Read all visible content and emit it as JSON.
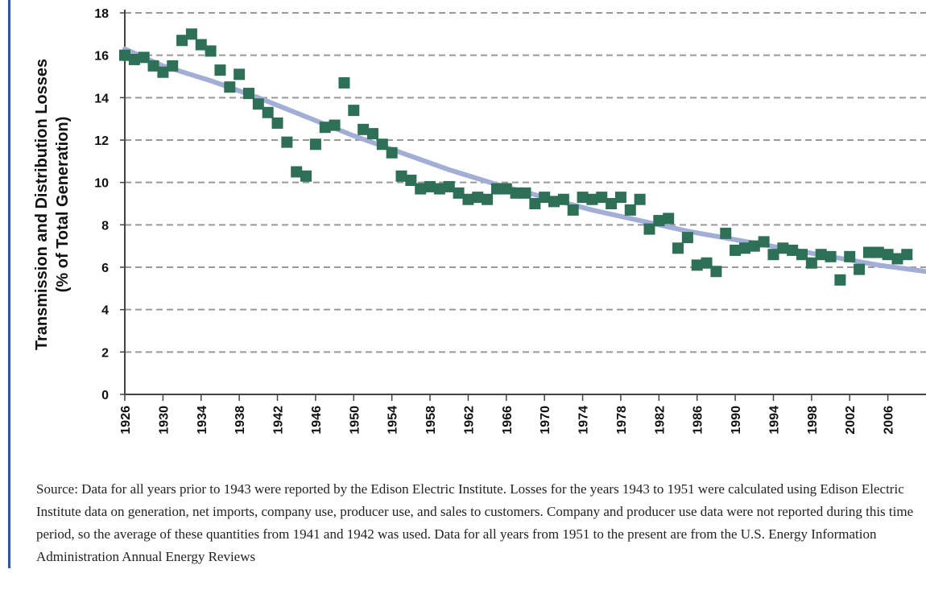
{
  "chart_data": {
    "type": "scatter",
    "ylabel": [
      "Transmission and Distribution Losses",
      "(% of Total Generation)"
    ],
    "source": "Source: Data for all years prior to 1943 were reported by the Edison Electric Institute. Losses for the years 1943 to 1951 were calculated using Edison Electric Institute data on generation, net imports, company use, producer use, and sales to customers. Company and producer use data were not reported during this time period, so the average of these quantities from 1941 and 1942 was used. Data for all years from 1951 to the present are from the U.S. Energy Information Administration Annual Energy Reviews",
    "x": [
      1926,
      1927,
      1928,
      1929,
      1930,
      1931,
      1932,
      1933,
      1934,
      1935,
      1936,
      1937,
      1938,
      1939,
      1940,
      1941,
      1942,
      1943,
      1944,
      1945,
      1946,
      1947,
      1948,
      1949,
      1950,
      1951,
      1952,
      1953,
      1954,
      1955,
      1956,
      1957,
      1958,
      1959,
      1960,
      1961,
      1962,
      1963,
      1964,
      1965,
      1966,
      1967,
      1968,
      1969,
      1970,
      1971,
      1972,
      1973,
      1974,
      1975,
      1976,
      1977,
      1978,
      1979,
      1980,
      1981,
      1982,
      1983,
      1984,
      1985,
      1986,
      1987,
      1988,
      1989,
      1990,
      1991,
      1992,
      1993,
      1994,
      1995,
      1996,
      1997,
      1998,
      1999,
      2000,
      2001,
      2002,
      2003,
      2004,
      2005,
      2006,
      2007,
      2008
    ],
    "series": [
      {
        "color": "#2e7056",
        "values": [
          16.0,
          15.8,
          15.9,
          15.5,
          15.2,
          15.5,
          16.7,
          17.0,
          16.5,
          16.2,
          15.3,
          14.5,
          15.1,
          14.2,
          13.7,
          13.3,
          12.8,
          11.9,
          10.5,
          10.3,
          11.8,
          12.6,
          12.7,
          14.7,
          13.4,
          12.5,
          12.3,
          11.8,
          11.4,
          10.3,
          10.1,
          9.7,
          9.8,
          9.7,
          9.8,
          9.5,
          9.2,
          9.3,
          9.2,
          9.7,
          9.7,
          9.5,
          9.5,
          9.0,
          9.3,
          9.1,
          9.2,
          8.7,
          9.3,
          9.2,
          9.3,
          9.0,
          9.3,
          8.7,
          9.2,
          7.8,
          8.2,
          8.3,
          6.9,
          7.4,
          6.1,
          6.2,
          5.8,
          7.6,
          6.8,
          6.9,
          7.0,
          7.2,
          6.6,
          6.9,
          6.8,
          6.6,
          6.2,
          6.6,
          6.5,
          5.4,
          6.5,
          5.9,
          6.7,
          6.7,
          6.6,
          6.4,
          6.6
        ]
      }
    ],
    "trend": {
      "color": "#a3aed6",
      "x": [
        1926,
        1930,
        1935,
        1940,
        1945,
        1950,
        1955,
        1960,
        1965,
        1970,
        1975,
        1980,
        1985,
        1990,
        1995,
        2000,
        2005,
        2010
      ],
      "values": [
        16.3,
        15.5,
        14.8,
        14.0,
        13.1,
        12.2,
        11.4,
        10.6,
        9.9,
        9.3,
        8.7,
        8.2,
        7.7,
        7.3,
        6.9,
        6.5,
        6.1,
        5.8
      ]
    },
    "xlim": [
      1926,
      2010
    ],
    "ylim": [
      0,
      18
    ],
    "xticks": [
      1926,
      1930,
      1934,
      1938,
      1942,
      1946,
      1950,
      1954,
      1958,
      1962,
      1966,
      1970,
      1974,
      1978,
      1982,
      1986,
      1990,
      1994,
      1998,
      2002,
      2006
    ],
    "yticks": [
      0,
      2,
      4,
      6,
      8,
      10,
      12,
      14,
      16,
      18
    ],
    "grid": true
  }
}
